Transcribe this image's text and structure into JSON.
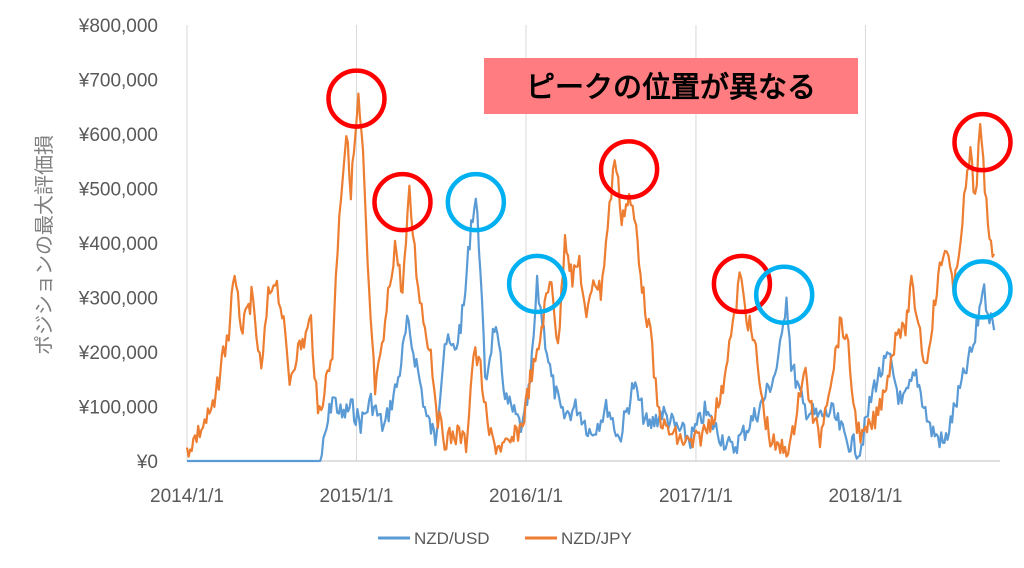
{
  "chart_data": {
    "type": "line",
    "ylabel": "ポジションの最大評価損",
    "y_ticks": [
      "¥0",
      "¥100,000",
      "¥200,000",
      "¥300,000",
      "¥400,000",
      "¥500,000",
      "¥600,000",
      "¥700,000",
      "¥800,000"
    ],
    "x_ticks": [
      "2014/1/1",
      "2015/1/1",
      "2016/1/1",
      "2017/1/1",
      "2018/1/1"
    ],
    "ylim": [
      0,
      800000
    ],
    "xlim": [
      "2014-01-01",
      "2018-10-31"
    ],
    "grid": "vertical",
    "legend_position": "bottom",
    "annotation": "ピークの位置が異なる",
    "series": [
      {
        "name": "NZD/USD",
        "color": "#5b9bd5",
        "points": [
          [
            "2014-01-01",
            0
          ],
          [
            "2014-10-15",
            0
          ],
          [
            "2014-10-25",
            40000
          ],
          [
            "2014-11-10",
            120000
          ],
          [
            "2014-12-01",
            80000
          ],
          [
            "2014-12-20",
            100000
          ],
          [
            "2015-01-10",
            70000
          ],
          [
            "2015-02-01",
            110000
          ],
          [
            "2015-03-01",
            60000
          ],
          [
            "2015-04-01",
            150000
          ],
          [
            "2015-04-20",
            250000
          ],
          [
            "2015-05-10",
            180000
          ],
          [
            "2015-06-01",
            80000
          ],
          [
            "2015-06-20",
            40000
          ],
          [
            "2015-07-10",
            220000
          ],
          [
            "2015-08-01",
            200000
          ],
          [
            "2015-08-20",
            280000
          ],
          [
            "2015-09-05",
            440000
          ],
          [
            "2015-09-15",
            480000
          ],
          [
            "2015-09-25",
            360000
          ],
          [
            "2015-10-05",
            140000
          ],
          [
            "2015-10-25",
            250000
          ],
          [
            "2015-11-20",
            110000
          ],
          [
            "2015-12-10",
            80000
          ],
          [
            "2015-12-25",
            60000
          ],
          [
            "2016-01-10",
            140000
          ],
          [
            "2016-01-25",
            320000
          ],
          [
            "2016-02-05",
            260000
          ],
          [
            "2016-02-25",
            150000
          ],
          [
            "2016-03-20",
            80000
          ],
          [
            "2016-04-20",
            100000
          ],
          [
            "2016-05-20",
            50000
          ],
          [
            "2016-06-25",
            100000
          ],
          [
            "2016-07-20",
            40000
          ],
          [
            "2016-08-20",
            140000
          ],
          [
            "2016-09-20",
            60000
          ],
          [
            "2016-10-20",
            90000
          ],
          [
            "2016-11-20",
            60000
          ],
          [
            "2016-12-20",
            40000
          ],
          [
            "2017-01-20",
            90000
          ],
          [
            "2017-02-20",
            50000
          ],
          [
            "2017-03-20",
            20000
          ],
          [
            "2017-04-20",
            60000
          ],
          [
            "2017-05-20",
            100000
          ],
          [
            "2017-06-20",
            160000
          ],
          [
            "2017-07-05",
            220000
          ],
          [
            "2017-07-15",
            310000
          ],
          [
            "2017-07-25",
            180000
          ],
          [
            "2017-08-20",
            100000
          ],
          [
            "2017-09-20",
            80000
          ],
          [
            "2017-10-20",
            90000
          ],
          [
            "2017-11-20",
            40000
          ],
          [
            "2017-12-20",
            20000
          ],
          [
            "2018-01-20",
            140000
          ],
          [
            "2018-02-20",
            190000
          ],
          [
            "2018-03-20",
            100000
          ],
          [
            "2018-04-20",
            160000
          ],
          [
            "2018-05-20",
            60000
          ],
          [
            "2018-06-20",
            30000
          ],
          [
            "2018-07-20",
            120000
          ],
          [
            "2018-08-10",
            180000
          ],
          [
            "2018-08-25",
            220000
          ],
          [
            "2018-09-10",
            320000
          ],
          [
            "2018-09-25",
            270000
          ],
          [
            "2018-10-05",
            240000
          ]
        ]
      },
      {
        "name": "NZD/JPY",
        "color": "#ed7d31",
        "points": [
          [
            "2014-01-01",
            20000
          ],
          [
            "2014-02-01",
            60000
          ],
          [
            "2014-03-01",
            100000
          ],
          [
            "2014-03-20",
            200000
          ],
          [
            "2014-04-01",
            230000
          ],
          [
            "2014-04-10",
            340000
          ],
          [
            "2014-05-01",
            240000
          ],
          [
            "2014-05-20",
            300000
          ],
          [
            "2014-06-10",
            160000
          ],
          [
            "2014-06-25",
            300000
          ],
          [
            "2014-07-10",
            340000
          ],
          [
            "2014-07-25",
            270000
          ],
          [
            "2014-08-10",
            150000
          ],
          [
            "2014-08-25",
            200000
          ],
          [
            "2014-09-10",
            220000
          ],
          [
            "2014-09-25",
            260000
          ],
          [
            "2014-10-10",
            80000
          ],
          [
            "2014-11-10",
            200000
          ],
          [
            "2014-11-25",
            460000
          ],
          [
            "2014-12-10",
            600000
          ],
          [
            "2014-12-20",
            500000
          ],
          [
            "2015-01-05",
            660000
          ],
          [
            "2015-01-15",
            560000
          ],
          [
            "2015-01-25",
            350000
          ],
          [
            "2015-02-10",
            130000
          ],
          [
            "2015-02-25",
            200000
          ],
          [
            "2015-03-10",
            300000
          ],
          [
            "2015-03-25",
            400000
          ],
          [
            "2015-04-10",
            310000
          ],
          [
            "2015-04-25",
            490000
          ],
          [
            "2015-05-10",
            350000
          ],
          [
            "2015-05-25",
            260000
          ],
          [
            "2015-06-10",
            200000
          ],
          [
            "2015-06-25",
            80000
          ],
          [
            "2015-07-10",
            40000
          ],
          [
            "2015-08-10",
            50000
          ],
          [
            "2015-08-25",
            30000
          ],
          [
            "2015-09-10",
            200000
          ],
          [
            "2015-09-25",
            170000
          ],
          [
            "2015-10-10",
            60000
          ],
          [
            "2015-10-25",
            30000
          ],
          [
            "2015-11-25",
            25000
          ],
          [
            "2015-12-25",
            70000
          ],
          [
            "2016-01-10",
            150000
          ],
          [
            "2016-01-25",
            190000
          ],
          [
            "2016-02-10",
            280000
          ],
          [
            "2016-02-25",
            340000
          ],
          [
            "2016-03-10",
            200000
          ],
          [
            "2016-03-25",
            420000
          ],
          [
            "2016-04-10",
            330000
          ],
          [
            "2016-04-25",
            370000
          ],
          [
            "2016-05-10",
            250000
          ],
          [
            "2016-05-25",
            340000
          ],
          [
            "2016-06-10",
            310000
          ],
          [
            "2016-06-25",
            430000
          ],
          [
            "2016-07-10",
            560000
          ],
          [
            "2016-07-25",
            450000
          ],
          [
            "2016-08-10",
            480000
          ],
          [
            "2016-08-25",
            430000
          ],
          [
            "2016-09-10",
            300000
          ],
          [
            "2016-09-25",
            230000
          ],
          [
            "2016-10-10",
            100000
          ],
          [
            "2016-10-25",
            60000
          ],
          [
            "2016-11-25",
            40000
          ],
          [
            "2016-12-25",
            30000
          ],
          [
            "2017-01-25",
            60000
          ],
          [
            "2017-02-25",
            120000
          ],
          [
            "2017-03-10",
            200000
          ],
          [
            "2017-03-25",
            260000
          ],
          [
            "2017-04-05",
            340000
          ],
          [
            "2017-04-20",
            270000
          ],
          [
            "2017-05-10",
            200000
          ],
          [
            "2017-05-25",
            100000
          ],
          [
            "2017-06-10",
            40000
          ],
          [
            "2017-06-25",
            20000
          ],
          [
            "2017-07-25",
            30000
          ],
          [
            "2017-08-10",
            120000
          ],
          [
            "2017-08-25",
            160000
          ],
          [
            "2017-09-10",
            80000
          ],
          [
            "2017-09-25",
            40000
          ],
          [
            "2017-10-10",
            120000
          ],
          [
            "2017-10-25",
            180000
          ],
          [
            "2017-11-10",
            260000
          ],
          [
            "2017-11-25",
            200000
          ],
          [
            "2017-12-10",
            80000
          ],
          [
            "2017-12-25",
            40000
          ],
          [
            "2018-01-25",
            80000
          ],
          [
            "2018-02-25",
            180000
          ],
          [
            "2018-03-10",
            250000
          ],
          [
            "2018-03-25",
            230000
          ],
          [
            "2018-04-10",
            320000
          ],
          [
            "2018-04-25",
            260000
          ],
          [
            "2018-05-10",
            170000
          ],
          [
            "2018-05-25",
            260000
          ],
          [
            "2018-06-10",
            350000
          ],
          [
            "2018-06-25",
            400000
          ],
          [
            "2018-07-10",
            300000
          ],
          [
            "2018-07-25",
            420000
          ],
          [
            "2018-08-05",
            500000
          ],
          [
            "2018-08-15",
            560000
          ],
          [
            "2018-08-25",
            480000
          ],
          [
            "2018-09-05",
            610000
          ],
          [
            "2018-09-15",
            500000
          ],
          [
            "2018-09-25",
            420000
          ],
          [
            "2018-10-05",
            380000
          ]
        ]
      }
    ],
    "highlight_circles": [
      {
        "color": "#ff0000",
        "x": "2015-01-01",
        "y": 665000
      },
      {
        "color": "#ff0000",
        "x": "2015-04-10",
        "y": 475000
      },
      {
        "color": "#00b0f0",
        "x": "2015-09-15",
        "y": 475000
      },
      {
        "color": "#00b0f0",
        "x": "2016-01-25",
        "y": 325000
      },
      {
        "color": "#ff0000",
        "x": "2016-08-10",
        "y": 535000
      },
      {
        "color": "#ff0000",
        "x": "2017-04-10",
        "y": 325000
      },
      {
        "color": "#00b0f0",
        "x": "2017-07-10",
        "y": 305000
      },
      {
        "color": "#ff0000",
        "x": "2018-09-10",
        "y": 585000
      },
      {
        "color": "#00b0f0",
        "x": "2018-09-10",
        "y": 315000
      }
    ],
    "annotation_bg": "#ff7c80"
  }
}
